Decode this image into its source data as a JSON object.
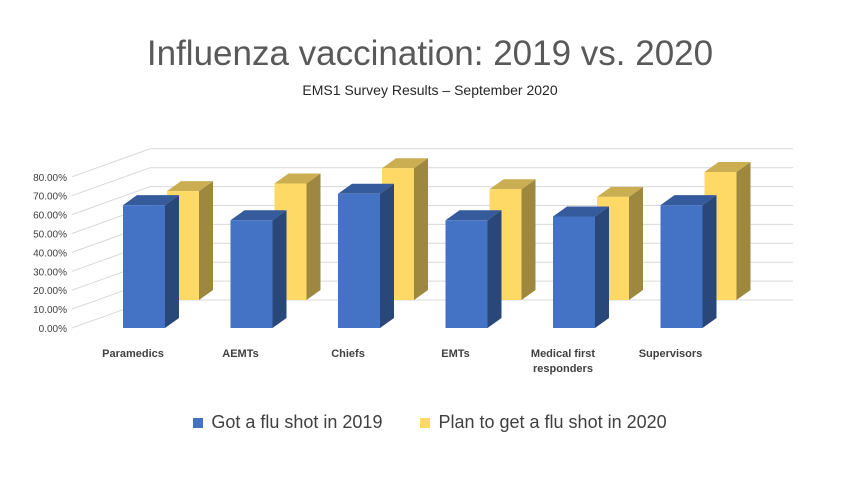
{
  "chart_data": {
    "type": "bar",
    "title": "Influenza vaccination: 2019 vs. 2020",
    "subtitle": "EMS1 Survey Results – September 2020",
    "categories": [
      "Paramedics",
      "AEMTs",
      "Chiefs",
      "EMTs",
      "Medical first responders",
      "Supervisors"
    ],
    "series": [
      {
        "name": "Got a flu shot in 2019",
        "values": [
          65,
          57,
          71,
          57,
          59,
          65
        ],
        "color": "#4472C4"
      },
      {
        "name": "Plan to get a flu shot in 2020",
        "values": [
          57,
          61,
          69,
          58,
          54,
          67
        ],
        "color": "#FFD966"
      }
    ],
    "yticks": [
      "0.00%",
      "10.00%",
      "20.00%",
      "30.00%",
      "40.00%",
      "50.00%",
      "60.00%",
      "70.00%",
      "80.00%"
    ],
    "ylim": [
      0,
      80
    ],
    "legend_position": "bottom",
    "grid": true
  }
}
